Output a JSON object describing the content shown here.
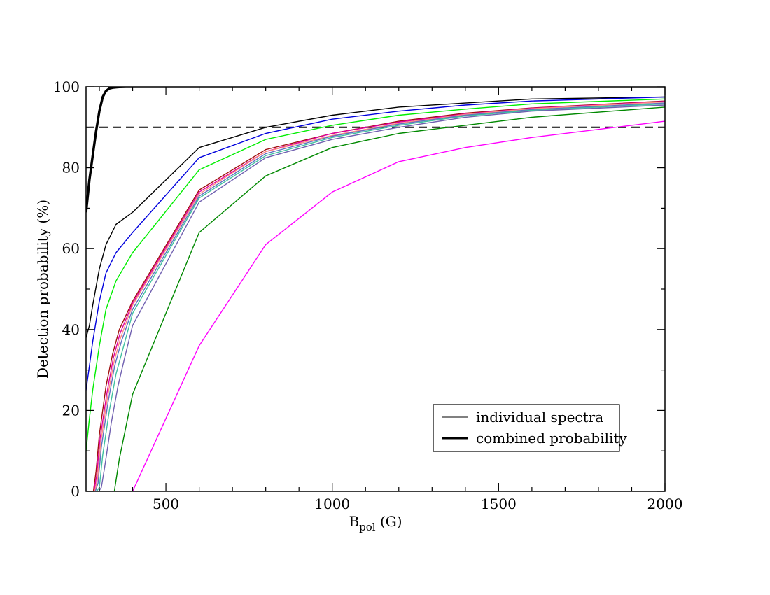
{
  "chart_data": {
    "type": "line",
    "xlabel": {
      "main": "B",
      "sub": "pol",
      "unit": " (G)"
    },
    "ylabel": "Detection probability (%)",
    "xlim": [
      260,
      2000
    ],
    "ylim": [
      0,
      100
    ],
    "xticks": [
      500,
      1000,
      1500,
      2000
    ],
    "xticks_minor": [
      300,
      400,
      600,
      700,
      800,
      900,
      1100,
      1200,
      1300,
      1400,
      1600,
      1700,
      1800,
      1900
    ],
    "yticks": [
      0,
      20,
      40,
      60,
      80,
      100
    ],
    "yticks_minor": [
      10,
      30,
      50,
      70,
      90
    ],
    "grid": false,
    "legend": {
      "placement": "bottom-right",
      "entries": [
        {
          "label": "individual spectra",
          "style": "thin"
        },
        {
          "label": "combined probability",
          "style": "thick"
        }
      ]
    },
    "threshold": {
      "y": 90,
      "style": "dashed",
      "color": "#000000"
    },
    "combined": {
      "color": "#000000",
      "x": [
        260,
        270,
        280,
        290,
        300,
        310,
        320,
        330,
        340,
        350,
        360,
        380,
        400,
        500,
        1000,
        2000
      ],
      "y": [
        69,
        77,
        83,
        89,
        94,
        97.5,
        99,
        99.6,
        99.8,
        99.9,
        99.95,
        100,
        100,
        100,
        100,
        100
      ]
    },
    "series": [
      {
        "color": "#000000",
        "x": [
          260,
          270,
          280,
          300,
          320,
          350,
          400,
          600,
          800,
          1000,
          1200,
          1400,
          1600,
          2000
        ],
        "y": [
          38,
          41,
          46,
          55,
          61,
          66,
          69,
          85,
          90,
          93,
          95,
          96,
          97,
          97.5
        ]
      },
      {
        "color": "#0000dd",
        "x": [
          260,
          270,
          280,
          300,
          320,
          350,
          400,
          600,
          800,
          1000,
          1200,
          1400,
          1600,
          2000
        ],
        "y": [
          25,
          31,
          37,
          47,
          54,
          59,
          64,
          82.5,
          88.5,
          92,
          94,
          95.5,
          96.5,
          97.5
        ]
      },
      {
        "color": "#00ee00",
        "x": [
          260,
          270,
          280,
          300,
          320,
          350,
          400,
          600,
          800,
          1000,
          1200,
          1400,
          1600,
          2000
        ],
        "y": [
          10,
          18,
          25,
          36,
          45,
          52,
          59,
          79.5,
          87,
          90.5,
          93,
          94.5,
          95.8,
          97
        ]
      },
      {
        "color": "#a01010",
        "x": [
          282,
          290,
          300,
          320,
          340,
          360,
          400,
          600,
          800,
          1000,
          1200,
          1400,
          1600,
          2000
        ],
        "y": [
          0,
          5,
          14,
          26,
          34,
          40,
          47,
          74.5,
          84.5,
          88.5,
          91.5,
          93.5,
          94.8,
          96.5
        ]
      },
      {
        "color": "#e000a0",
        "x": [
          284,
          292,
          302,
          322,
          342,
          362,
          400,
          600,
          800,
          1000,
          1200,
          1400,
          1600,
          2000
        ],
        "y": [
          0,
          4,
          13,
          24,
          33,
          39,
          46.5,
          74,
          84,
          88.5,
          91.3,
          93.3,
          94.7,
          96.4
        ]
      },
      {
        "color": "#ff8a80",
        "x": [
          286,
          294,
          304,
          324,
          344,
          364,
          400,
          600,
          800,
          1000,
          1200,
          1400,
          1600,
          2000
        ],
        "y": [
          0,
          3,
          12,
          23,
          32,
          38,
          46,
          73.5,
          84,
          88,
          91,
          93.2,
          94.6,
          96.3
        ]
      },
      {
        "color": "#6070c0",
        "x": [
          288,
          296,
          306,
          326,
          346,
          366,
          400,
          600,
          800,
          1000,
          1200,
          1400,
          1600,
          2000
        ],
        "y": [
          0,
          2,
          11,
          22,
          31,
          37,
          45,
          73,
          83.5,
          87.8,
          90.8,
          93,
          94.4,
          96
        ]
      },
      {
        "color": "#40c0a0",
        "x": [
          292,
          300,
          310,
          330,
          350,
          370,
          400,
          600,
          800,
          1000,
          1200,
          1400,
          1600,
          2000
        ],
        "y": [
          0,
          1,
          9,
          20,
          29,
          35,
          44,
          72.5,
          83,
          87.5,
          90.5,
          92.8,
          94.2,
          95.8
        ]
      },
      {
        "color": "#7060b0",
        "x": [
          298,
          306,
          316,
          336,
          356,
          376,
          400,
          600,
          800,
          1000,
          1200,
          1400,
          1600,
          2000
        ],
        "y": [
          0,
          1,
          6,
          17,
          26,
          33,
          41,
          71.5,
          82.5,
          87,
          90,
          92.5,
          94,
          95.5
        ]
      },
      {
        "color": "#008800",
        "x": [
          345,
          360,
          400,
          600,
          800,
          1000,
          1200,
          1400,
          1600,
          2000
        ],
        "y": [
          0,
          8,
          24,
          64,
          78,
          85,
          88.5,
          90.5,
          92.5,
          95
        ]
      },
      {
        "color": "#ff00ff",
        "x": [
          400,
          600,
          800,
          1000,
          1200,
          1400,
          1600,
          2000
        ],
        "y": [
          0,
          36,
          61,
          74,
          81.5,
          85,
          87.5,
          91.5
        ]
      }
    ]
  }
}
